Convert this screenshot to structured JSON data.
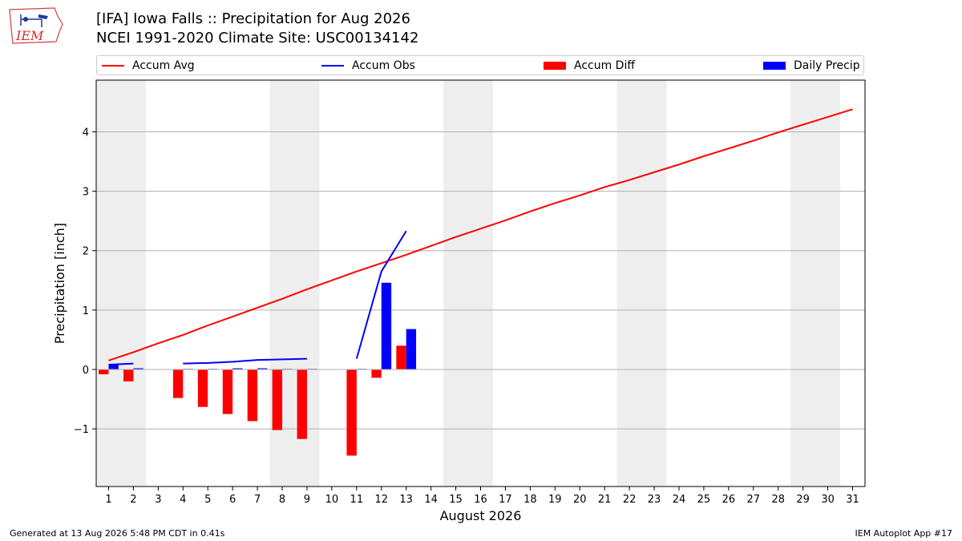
{
  "title_line1": "[IFA] Iowa Falls :: Precipitation for Aug 2026",
  "title_line2": "NCEI 1991-2020 Climate Site: USC00134142",
  "logo_text": "IEM",
  "footer_left": "Generated at 13 Aug 2026 5:48 PM CDT in 0.41s",
  "footer_right": "IEM Autoplot App #17",
  "colors": {
    "accum_avg": "#ff0000",
    "accum_obs": "#0000ff",
    "accum_diff": "#ff0000",
    "daily_precip": "#0000ff",
    "weekend_shade": "#eeeeee",
    "grid": "#b0b0b0"
  },
  "chart_data": {
    "type": "bar",
    "xlabel": "August 2026",
    "ylabel": "Precipitation [inch]",
    "x": [
      1,
      2,
      3,
      4,
      5,
      6,
      7,
      8,
      9,
      10,
      11,
      12,
      13,
      14,
      15,
      16,
      17,
      18,
      19,
      20,
      21,
      22,
      23,
      24,
      25,
      26,
      27,
      28,
      29,
      30,
      31
    ],
    "xlim": [
      0.5,
      31.5
    ],
    "ylim": [
      -1.97,
      4.87
    ],
    "yticks": [
      -1,
      0,
      1,
      2,
      3,
      4
    ],
    "grid": "horizontal",
    "legend_position": "top",
    "shaded_days": [
      1,
      2,
      8,
      9,
      15,
      16,
      22,
      23,
      29,
      30
    ],
    "series": [
      {
        "name": "Accum Avg",
        "kind": "line",
        "x": [
          1,
          2,
          3,
          4,
          5,
          6,
          7,
          8,
          9,
          10,
          11,
          12,
          13,
          14,
          15,
          16,
          17,
          18,
          19,
          20,
          21,
          22,
          23,
          24,
          25,
          26,
          27,
          28,
          29,
          30,
          31
        ],
        "values": [
          0.15,
          0.29,
          0.44,
          0.58,
          0.74,
          0.89,
          1.04,
          1.19,
          1.35,
          1.5,
          1.65,
          1.79,
          1.93,
          2.08,
          2.23,
          2.37,
          2.51,
          2.66,
          2.8,
          2.93,
          3.07,
          3.19,
          3.32,
          3.45,
          3.59,
          3.72,
          3.85,
          3.99,
          4.12,
          4.25,
          4.38
        ]
      },
      {
        "name": "Accum Obs",
        "kind": "line",
        "segments": [
          {
            "x": [
              1,
              2
            ],
            "values": [
              0.08,
              0.1
            ]
          },
          {
            "x": [
              4,
              5,
              6,
              7,
              8,
              9
            ],
            "values": [
              0.1,
              0.11,
              0.13,
              0.16,
              0.17,
              0.18
            ]
          },
          {
            "x": [
              11,
              12,
              13
            ],
            "values": [
              0.18,
              1.65,
              2.33
            ]
          }
        ]
      },
      {
        "name": "Accum Diff",
        "kind": "bar",
        "x": [
          1,
          2,
          4,
          5,
          6,
          7,
          8,
          9,
          11,
          12,
          13
        ],
        "values": [
          -0.08,
          -0.2,
          -0.48,
          -0.63,
          -0.75,
          -0.87,
          -1.02,
          -1.17,
          -1.45,
          -0.14,
          0.4
        ]
      },
      {
        "name": "Daily Precip",
        "kind": "bar",
        "x": [
          1,
          2,
          4,
          5,
          6,
          7,
          8,
          9,
          11,
          12,
          13
        ],
        "values": [
          0.08,
          0.02,
          0.01,
          0.01,
          0.02,
          0.02,
          0.01,
          0.01,
          0.01,
          1.46,
          0.68
        ]
      }
    ]
  }
}
